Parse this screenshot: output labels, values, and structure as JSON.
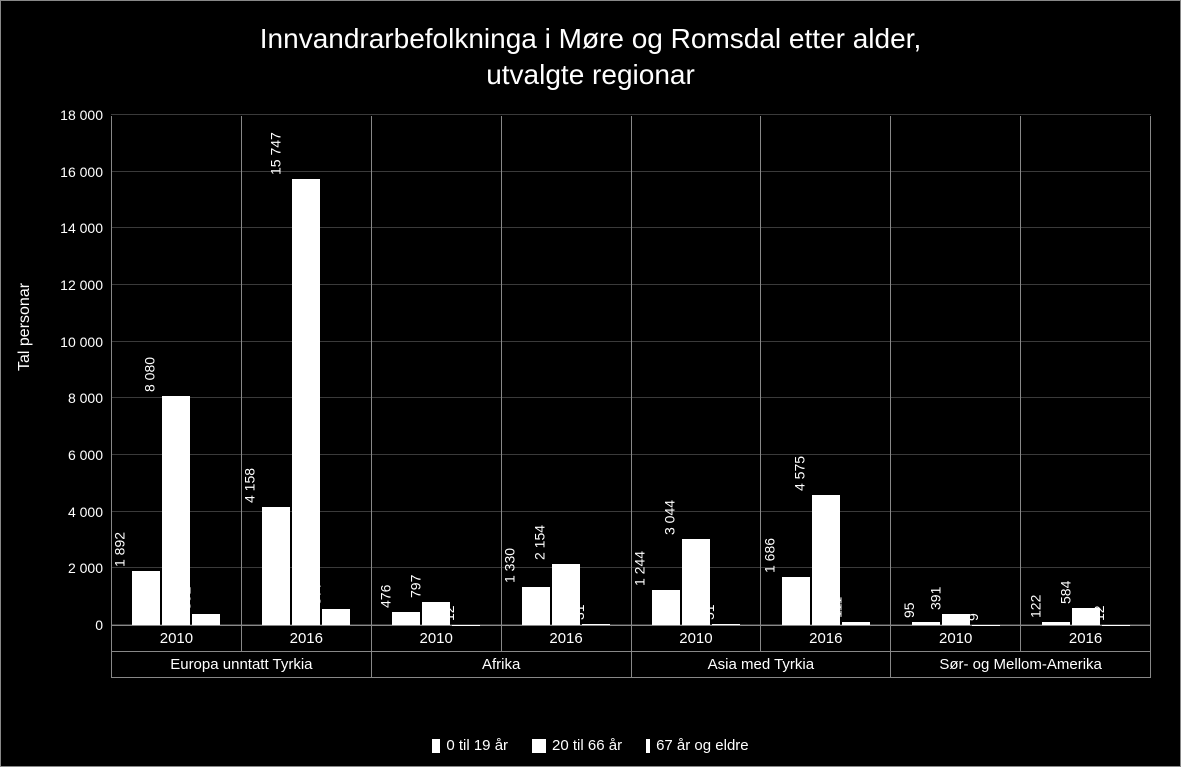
{
  "chart": {
    "type": "grouped-bar",
    "title_line1": "Innvandrarbefolkninga i Møre og Romsdal etter alder,",
    "title_line2": "utvalgte regionar",
    "title_fontsize": 28,
    "background_color": "#000000",
    "text_color": "#ffffff",
    "grid_color": "#3a3a3a",
    "border_color": "#888888",
    "y_axis": {
      "label": "Tal personar",
      "min": 0,
      "max": 18000,
      "tick_step": 2000,
      "ticks": [
        "0",
        "2 000",
        "4 000",
        "6 000",
        "8 000",
        "10 000",
        "12 000",
        "14 000",
        "16 000",
        "18 000"
      ],
      "label_fontsize": 16,
      "tick_fontsize": 14
    },
    "series": [
      {
        "name": "0 til 19 år",
        "color": "#ffffff",
        "swatch_w": 8,
        "swatch_h": 14
      },
      {
        "name": "20 til 66 år",
        "color": "#ffffff",
        "swatch_w": 14,
        "swatch_h": 14
      },
      {
        "name": "67 år og eldre",
        "color": "#ffffff",
        "swatch_w": 4,
        "swatch_h": 14
      }
    ],
    "bar_color": "#ffffff",
    "bar_label_fontsize": 14,
    "regions": [
      {
        "name": "Europa unntatt Tyrkia",
        "years": [
          {
            "year": "2010",
            "values": [
              1892,
              8080,
              392
            ],
            "labels": [
              "1 892",
              "8 080",
              "392"
            ]
          },
          {
            "year": "2016",
            "values": [
              4158,
              15747,
              577
            ],
            "labels": [
              "4 158",
              "15 747",
              "577"
            ]
          }
        ]
      },
      {
        "name": "Afrika",
        "years": [
          {
            "year": "2010",
            "values": [
              476,
              797,
              12
            ],
            "labels": [
              "476",
              "797",
              "12"
            ]
          },
          {
            "year": "2016",
            "values": [
              1330,
              2154,
              31
            ],
            "labels": [
              "1 330",
              "2 154",
              "31"
            ]
          }
        ]
      },
      {
        "name": "Asia med Tyrkia",
        "years": [
          {
            "year": "2010",
            "values": [
              1244,
              3044,
              51
            ],
            "labels": [
              "1 244",
              "3 044",
              "51"
            ]
          },
          {
            "year": "2016",
            "values": [
              1686,
              4575,
              111
            ],
            "labels": [
              "1 686",
              "4 575",
              "111"
            ]
          }
        ]
      },
      {
        "name": "Sør- og Mellom-Amerika",
        "years": [
          {
            "year": "2010",
            "values": [
              95,
              391,
              9
            ],
            "labels": [
              "95",
              "391",
              "9"
            ]
          },
          {
            "year": "2016",
            "values": [
              122,
              584,
              12
            ],
            "labels": [
              "122",
              "584",
              "12"
            ]
          }
        ]
      }
    ]
  }
}
